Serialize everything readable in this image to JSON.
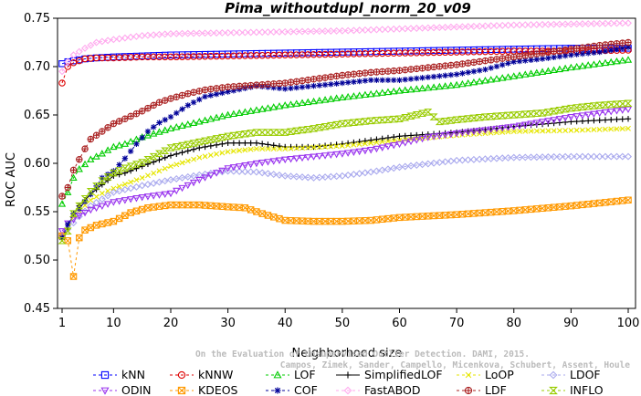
{
  "chart_data": {
    "type": "line",
    "title": "Pima_withoutdupl_norm_20_v09",
    "xlabel": "Neighborhood size",
    "ylabel": "ROC AUC",
    "xlim": [
      1,
      100
    ],
    "ylim": [
      0.45,
      0.75
    ],
    "xticks": [
      "1",
      "10",
      "20",
      "30",
      "40",
      "50",
      "60",
      "70",
      "80",
      "90",
      "100"
    ],
    "yticks": [
      "0.45",
      "0.50",
      "0.55",
      "0.60",
      "0.65",
      "0.70",
      "0.75"
    ],
    "credit_lines": [
      "Campos, Zimek, Sander, Campello, Micenkova, Schubert, Assent, Houle",
      "On the Evaluation of Unsupervised Outlier Detection. DAMI, 2015."
    ],
    "grid": false,
    "legend_position": "bottom",
    "series": [
      {
        "name": "kNN",
        "color": "#0000ff",
        "marker": "square",
        "dash": "3,3",
        "points": [
          [
            1,
            0.703
          ],
          [
            2,
            0.705
          ],
          [
            3,
            0.706
          ],
          [
            5,
            0.708
          ],
          [
            7,
            0.709
          ],
          [
            10,
            0.71
          ],
          [
            15,
            0.711
          ],
          [
            20,
            0.712
          ],
          [
            30,
            0.713
          ],
          [
            40,
            0.714
          ],
          [
            50,
            0.715
          ],
          [
            60,
            0.716
          ],
          [
            70,
            0.717
          ],
          [
            80,
            0.718
          ],
          [
            90,
            0.719
          ],
          [
            100,
            0.719
          ]
        ]
      },
      {
        "name": "kNNW",
        "color": "#dd0000",
        "marker": "circle",
        "dash": "3,3",
        "points": [
          [
            1,
            0.683
          ],
          [
            2,
            0.7
          ],
          [
            3,
            0.704
          ],
          [
            5,
            0.708
          ],
          [
            7,
            0.709
          ],
          [
            10,
            0.709
          ],
          [
            15,
            0.71
          ],
          [
            20,
            0.71
          ],
          [
            30,
            0.711
          ],
          [
            40,
            0.712
          ],
          [
            50,
            0.713
          ],
          [
            60,
            0.714
          ],
          [
            70,
            0.715
          ],
          [
            80,
            0.716
          ],
          [
            90,
            0.716
          ],
          [
            100,
            0.717
          ]
        ]
      },
      {
        "name": "LOF",
        "color": "#00cc00",
        "marker": "triangle",
        "dash": "3,3",
        "points": [
          [
            1,
            0.558
          ],
          [
            2,
            0.57
          ],
          [
            3,
            0.585
          ],
          [
            4,
            0.594
          ],
          [
            6,
            0.604
          ],
          [
            8,
            0.61
          ],
          [
            10,
            0.617
          ],
          [
            12,
            0.62
          ],
          [
            15,
            0.627
          ],
          [
            20,
            0.636
          ],
          [
            25,
            0.643
          ],
          [
            30,
            0.65
          ],
          [
            35,
            0.655
          ],
          [
            40,
            0.66
          ],
          [
            50,
            0.668
          ],
          [
            60,
            0.675
          ],
          [
            70,
            0.681
          ],
          [
            80,
            0.69
          ],
          [
            90,
            0.699
          ],
          [
            100,
            0.707
          ]
        ]
      },
      {
        "name": "SimplifiedLOF",
        "color": "#000000",
        "marker": "plus",
        "dash": "",
        "points": [
          [
            1,
            0.522
          ],
          [
            2,
            0.533
          ],
          [
            3,
            0.548
          ],
          [
            4,
            0.556
          ],
          [
            6,
            0.568
          ],
          [
            8,
            0.578
          ],
          [
            10,
            0.587
          ],
          [
            12,
            0.59
          ],
          [
            15,
            0.597
          ],
          [
            20,
            0.608
          ],
          [
            25,
            0.616
          ],
          [
            30,
            0.621
          ],
          [
            35,
            0.621
          ],
          [
            40,
            0.617
          ],
          [
            45,
            0.617
          ],
          [
            50,
            0.62
          ],
          [
            60,
            0.628
          ],
          [
            70,
            0.632
          ],
          [
            80,
            0.638
          ],
          [
            90,
            0.643
          ],
          [
            100,
            0.646
          ]
        ]
      },
      {
        "name": "LoOP",
        "color": "#e6e600",
        "marker": "x",
        "dash": "3,3",
        "points": [
          [
            1,
            0.523
          ],
          [
            2,
            0.53
          ],
          [
            3,
            0.545
          ],
          [
            4,
            0.551
          ],
          [
            6,
            0.562
          ],
          [
            8,
            0.569
          ],
          [
            10,
            0.574
          ],
          [
            15,
            0.585
          ],
          [
            20,
            0.597
          ],
          [
            25,
            0.606
          ],
          [
            30,
            0.612
          ],
          [
            35,
            0.615
          ],
          [
            40,
            0.615
          ],
          [
            50,
            0.618
          ],
          [
            60,
            0.624
          ],
          [
            70,
            0.629
          ],
          [
            80,
            0.633
          ],
          [
            90,
            0.634
          ],
          [
            100,
            0.636
          ]
        ]
      },
      {
        "name": "LDOF",
        "color": "#aaaaee",
        "marker": "diamond",
        "dash": "3,3",
        "points": [
          [
            1,
            0.525
          ],
          [
            2,
            0.532
          ],
          [
            4,
            0.545
          ],
          [
            6,
            0.556
          ],
          [
            8,
            0.563
          ],
          [
            10,
            0.57
          ],
          [
            15,
            0.577
          ],
          [
            20,
            0.583
          ],
          [
            25,
            0.588
          ],
          [
            30,
            0.592
          ],
          [
            35,
            0.591
          ],
          [
            40,
            0.587
          ],
          [
            45,
            0.585
          ],
          [
            50,
            0.587
          ],
          [
            55,
            0.591
          ],
          [
            60,
            0.596
          ],
          [
            70,
            0.603
          ],
          [
            80,
            0.606
          ],
          [
            90,
            0.607
          ],
          [
            100,
            0.607
          ]
        ]
      },
      {
        "name": "ODIN",
        "color": "#9933ee",
        "marker": "tridown",
        "dash": "3,3",
        "points": [
          [
            1,
            0.53
          ],
          [
            2,
            0.538
          ],
          [
            4,
            0.546
          ],
          [
            6,
            0.552
          ],
          [
            8,
            0.556
          ],
          [
            10,
            0.56
          ],
          [
            15,
            0.565
          ],
          [
            20,
            0.569
          ],
          [
            25,
            0.583
          ],
          [
            30,
            0.595
          ],
          [
            35,
            0.6
          ],
          [
            40,
            0.604
          ],
          [
            45,
            0.607
          ],
          [
            50,
            0.61
          ],
          [
            55,
            0.614
          ],
          [
            60,
            0.62
          ],
          [
            65,
            0.627
          ],
          [
            70,
            0.631
          ],
          [
            80,
            0.638
          ],
          [
            90,
            0.648
          ],
          [
            100,
            0.656
          ]
        ]
      },
      {
        "name": "KDEOS",
        "color": "#ff9900",
        "marker": "squarex",
        "dash": "3,3",
        "points": [
          [
            1,
            0.525
          ],
          [
            2,
            0.52
          ],
          [
            3,
            0.483
          ],
          [
            4,
            0.523
          ],
          [
            5,
            0.531
          ],
          [
            7,
            0.536
          ],
          [
            10,
            0.54
          ],
          [
            13,
            0.549
          ],
          [
            16,
            0.554
          ],
          [
            20,
            0.557
          ],
          [
            25,
            0.557
          ],
          [
            30,
            0.555
          ],
          [
            33,
            0.554
          ],
          [
            36,
            0.548
          ],
          [
            40,
            0.541
          ],
          [
            45,
            0.54
          ],
          [
            50,
            0.54
          ],
          [
            55,
            0.541
          ],
          [
            60,
            0.544
          ],
          [
            70,
            0.547
          ],
          [
            80,
            0.551
          ],
          [
            90,
            0.556
          ],
          [
            100,
            0.562
          ]
        ]
      },
      {
        "name": "COF",
        "color": "#000099",
        "marker": "star",
        "dash": "3,3",
        "points": [
          [
            1,
            0.523
          ],
          [
            2,
            0.537
          ],
          [
            3,
            0.548
          ],
          [
            4,
            0.553
          ],
          [
            6,
            0.568
          ],
          [
            8,
            0.585
          ],
          [
            10,
            0.592
          ],
          [
            12,
            0.605
          ],
          [
            14,
            0.62
          ],
          [
            16,
            0.633
          ],
          [
            18,
            0.642
          ],
          [
            20,
            0.648
          ],
          [
            23,
            0.66
          ],
          [
            26,
            0.669
          ],
          [
            30,
            0.674
          ],
          [
            35,
            0.68
          ],
          [
            40,
            0.677
          ],
          [
            45,
            0.68
          ],
          [
            50,
            0.683
          ],
          [
            55,
            0.686
          ],
          [
            60,
            0.686
          ],
          [
            65,
            0.689
          ],
          [
            70,
            0.692
          ],
          [
            75,
            0.697
          ],
          [
            80,
            0.705
          ],
          [
            85,
            0.708
          ],
          [
            90,
            0.712
          ],
          [
            95,
            0.715
          ],
          [
            100,
            0.72
          ]
        ]
      },
      {
        "name": "FastABOD",
        "color": "#ffaaee",
        "marker": "diamond",
        "dash": "3,3",
        "points": [
          [
            1,
            0.695
          ],
          [
            2,
            0.705
          ],
          [
            3,
            0.712
          ],
          [
            5,
            0.719
          ],
          [
            7,
            0.725
          ],
          [
            10,
            0.728
          ],
          [
            15,
            0.732
          ],
          [
            20,
            0.734
          ],
          [
            30,
            0.735
          ],
          [
            40,
            0.736
          ],
          [
            50,
            0.737
          ],
          [
            60,
            0.739
          ],
          [
            70,
            0.741
          ],
          [
            80,
            0.743
          ],
          [
            90,
            0.744
          ],
          [
            100,
            0.745
          ]
        ]
      },
      {
        "name": "LDF",
        "color": "#aa2222",
        "marker": "circleplus",
        "dash": "3,3",
        "points": [
          [
            1,
            0.566
          ],
          [
            2,
            0.575
          ],
          [
            3,
            0.593
          ],
          [
            4,
            0.604
          ],
          [
            5,
            0.615
          ],
          [
            6,
            0.625
          ],
          [
            8,
            0.633
          ],
          [
            10,
            0.641
          ],
          [
            12,
            0.646
          ],
          [
            15,
            0.654
          ],
          [
            18,
            0.663
          ],
          [
            20,
            0.667
          ],
          [
            23,
            0.672
          ],
          [
            26,
            0.676
          ],
          [
            30,
            0.679
          ],
          [
            35,
            0.681
          ],
          [
            40,
            0.683
          ],
          [
            45,
            0.687
          ],
          [
            50,
            0.691
          ],
          [
            55,
            0.694
          ],
          [
            60,
            0.696
          ],
          [
            65,
            0.699
          ],
          [
            70,
            0.702
          ],
          [
            75,
            0.706
          ],
          [
            80,
            0.71
          ],
          [
            85,
            0.714
          ],
          [
            90,
            0.718
          ],
          [
            95,
            0.722
          ],
          [
            100,
            0.725
          ]
        ]
      },
      {
        "name": "INFLO",
        "color": "#99cc00",
        "marker": "hourglass",
        "dash": "3,3",
        "points": [
          [
            1,
            0.52
          ],
          [
            2,
            0.53
          ],
          [
            3,
            0.548
          ],
          [
            4,
            0.556
          ],
          [
            6,
            0.571
          ],
          [
            8,
            0.582
          ],
          [
            10,
            0.59
          ],
          [
            12,
            0.595
          ],
          [
            15,
            0.601
          ],
          [
            18,
            0.61
          ],
          [
            20,
            0.616
          ],
          [
            25,
            0.622
          ],
          [
            30,
            0.628
          ],
          [
            35,
            0.632
          ],
          [
            40,
            0.632
          ],
          [
            45,
            0.636
          ],
          [
            50,
            0.641
          ],
          [
            55,
            0.644
          ],
          [
            60,
            0.646
          ],
          [
            65,
            0.653
          ],
          [
            67,
            0.643
          ],
          [
            70,
            0.645
          ],
          [
            75,
            0.648
          ],
          [
            80,
            0.65
          ],
          [
            85,
            0.652
          ],
          [
            90,
            0.657
          ],
          [
            95,
            0.66
          ],
          [
            100,
            0.662
          ]
        ]
      }
    ]
  }
}
